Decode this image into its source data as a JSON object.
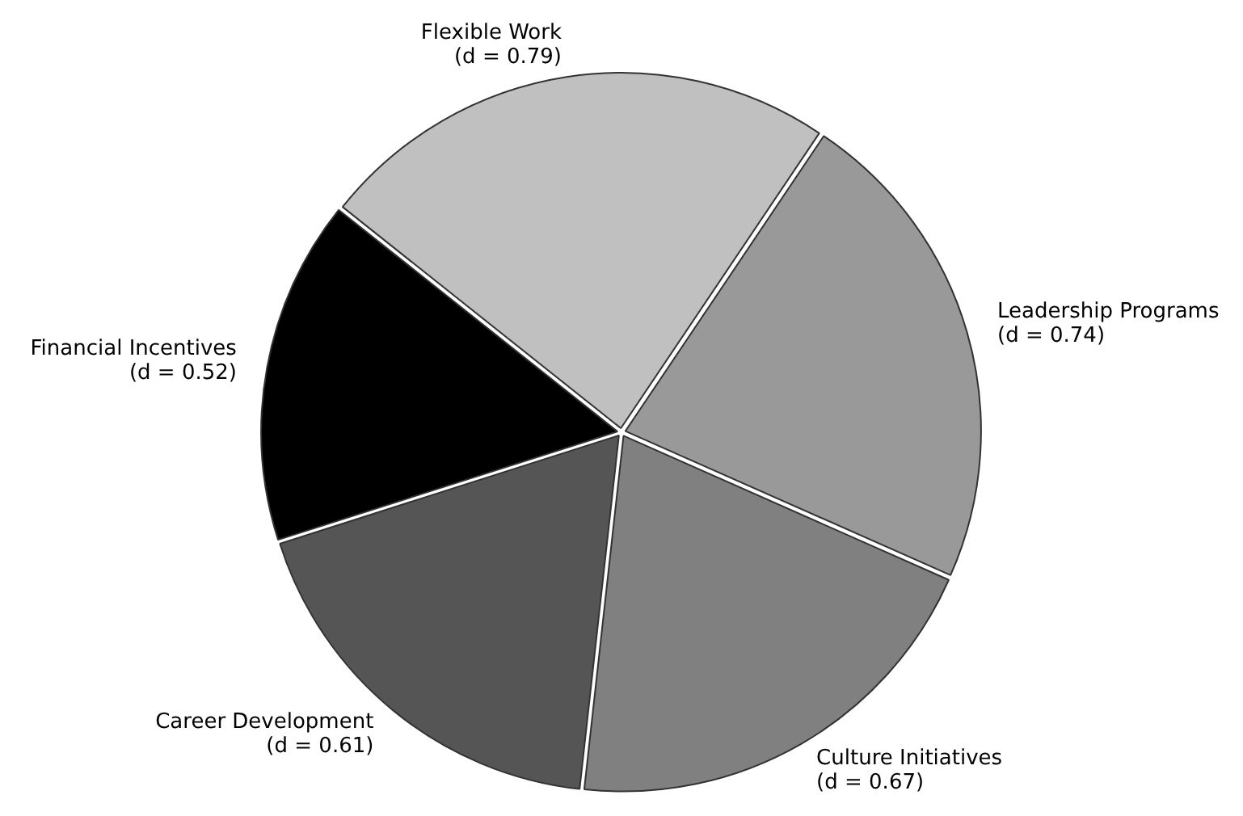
{
  "chart_data": {
    "type": "pie",
    "categories": [
      "Flexible Work",
      "Leadership Programs",
      "Culture Initiatives",
      "Career Development",
      "Financial Incentives"
    ],
    "values": [
      0.79,
      0.74,
      0.67,
      0.61,
      0.52
    ],
    "colors": [
      "#c0c0c0",
      "#999999",
      "#808080",
      "#555555",
      "#000000"
    ],
    "value_labels": [
      "(d = 0.79)",
      "(d = 0.74)",
      "(d = 0.67)",
      "(d = 0.61)",
      "(d = 0.52)"
    ],
    "legend": false
  }
}
